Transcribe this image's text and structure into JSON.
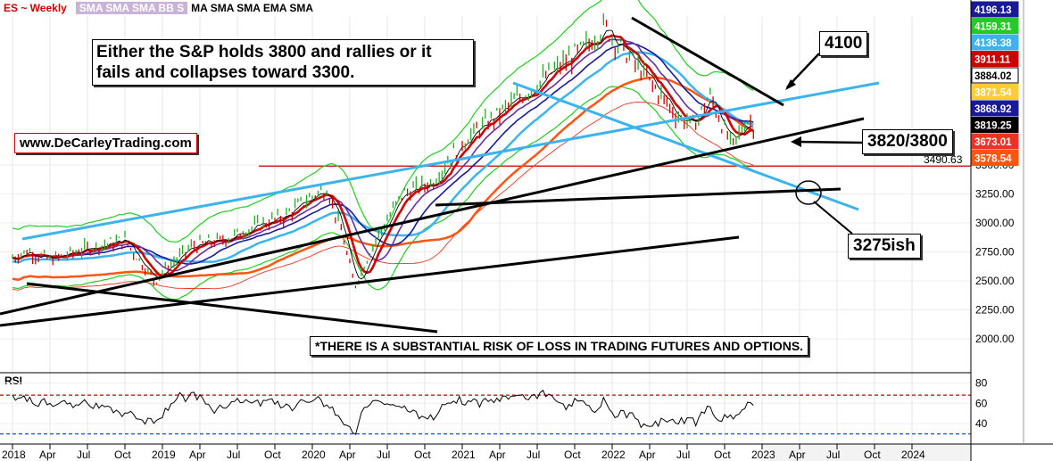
{
  "header": {
    "symbol": "ES ~ Weekly",
    "indicators_highlight": "SMA SMA SMA BB S",
    "indicators_rest": "MA SMA SMA EMA SMA"
  },
  "annotations": {
    "headline": "Either the S&P holds 3800 and rallies or it fails and collapses toward 3300.",
    "website": "www.DeCarleyTrading.com",
    "label_4100": "4100",
    "label_3820": "3820/3800",
    "label_3275": "3275ish",
    "disclaimer": "*THERE IS A SUBSTANTIAL RISK OF LOSS IN TRADING FUTURES AND OPTIONS."
  },
  "rsi": {
    "label": "RSI",
    "ticks": [
      "80",
      "60",
      "40"
    ],
    "upper_level": 68,
    "lower_level": 30
  },
  "colors": {
    "price_line": "#cc0000",
    "bollinger": "#22cc22",
    "sma_blue": "#3bb3ee",
    "sma_navy": "#1a1a99",
    "ema_orange": "#ff5511",
    "trendline_black": "#000000",
    "trendline_blue": "#3bb3ee"
  },
  "chart_data": {
    "type": "line",
    "title": "ES ~ Weekly",
    "y_ticks": [
      2000,
      2250,
      2500,
      2750,
      3000,
      3250,
      3500
    ],
    "y_tick_labels": [
      "2000.00",
      "2250.00",
      "2500.00",
      "2750.00",
      "3000.00",
      "3250.00",
      "3500.00"
    ],
    "x_tick_labels": [
      "2018",
      "Apr",
      "Jul",
      "Oct",
      "2019",
      "Apr",
      "Jul",
      "Oct",
      "2020",
      "Apr",
      "Jul",
      "Oct",
      "2021",
      "Apr",
      "Jul",
      "Oct",
      "2022",
      "Apr",
      "Jul",
      "Oct",
      "2023",
      "Apr",
      "Jul",
      "Oct",
      "2024"
    ],
    "horizontal_line": 3490.63,
    "price_labels": [
      {
        "value": "4196.13",
        "color": "#1a1a99",
        "text_color": "#ffffff"
      },
      {
        "value": "4159.31",
        "color": "#22cc22",
        "text_color": "#ffffff"
      },
      {
        "value": "4136.38",
        "color": "#3bb3ee",
        "text_color": "#ffffff"
      },
      {
        "value": "3911.11",
        "color": "#cc0000",
        "text_color": "#ffffff"
      },
      {
        "value": "3884.02",
        "color": "#ffffff",
        "text_color": "#000000"
      },
      {
        "value": "3871.54",
        "color": "#ffcc33",
        "text_color": "#ffffff"
      },
      {
        "value": "3868.92",
        "color": "#1a1a99",
        "text_color": "#ffffff"
      },
      {
        "value": "3819.25",
        "color": "#000000",
        "text_color": "#ffffff"
      },
      {
        "value": "3673.01",
        "color": "#ee3322",
        "text_color": "#ffffff"
      },
      {
        "value": "3578.54",
        "color": "#ff5511",
        "text_color": "#ffffff"
      }
    ],
    "hline_label": "3490.63",
    "series": [
      {
        "name": "",
        "color": "#cc0000",
        "x": [
          2018.0,
          2018.1,
          2018.25,
          2018.5,
          2018.75,
          2018.95,
          2019.0,
          2019.2,
          2019.4,
          2019.6,
          2019.8,
          2020.0,
          2020.1,
          2020.2,
          2020.28,
          2020.4,
          2020.6,
          2020.8,
          2021.0,
          2021.3,
          2021.6,
          2021.85,
          2021.95,
          2022.0,
          2022.2,
          2022.45,
          2022.55,
          2022.65,
          2022.8,
          2022.9,
          2022.95
        ],
        "y": [
          2700,
          2760,
          2680,
          2780,
          2850,
          2500,
          2580,
          2800,
          2850,
          2960,
          3050,
          3230,
          3300,
          2900,
          2450,
          2800,
          3250,
          3350,
          3700,
          4000,
          4300,
          4550,
          4700,
          4600,
          4300,
          3900,
          3850,
          4100,
          3650,
          3900,
          3819
        ]
      }
    ]
  }
}
